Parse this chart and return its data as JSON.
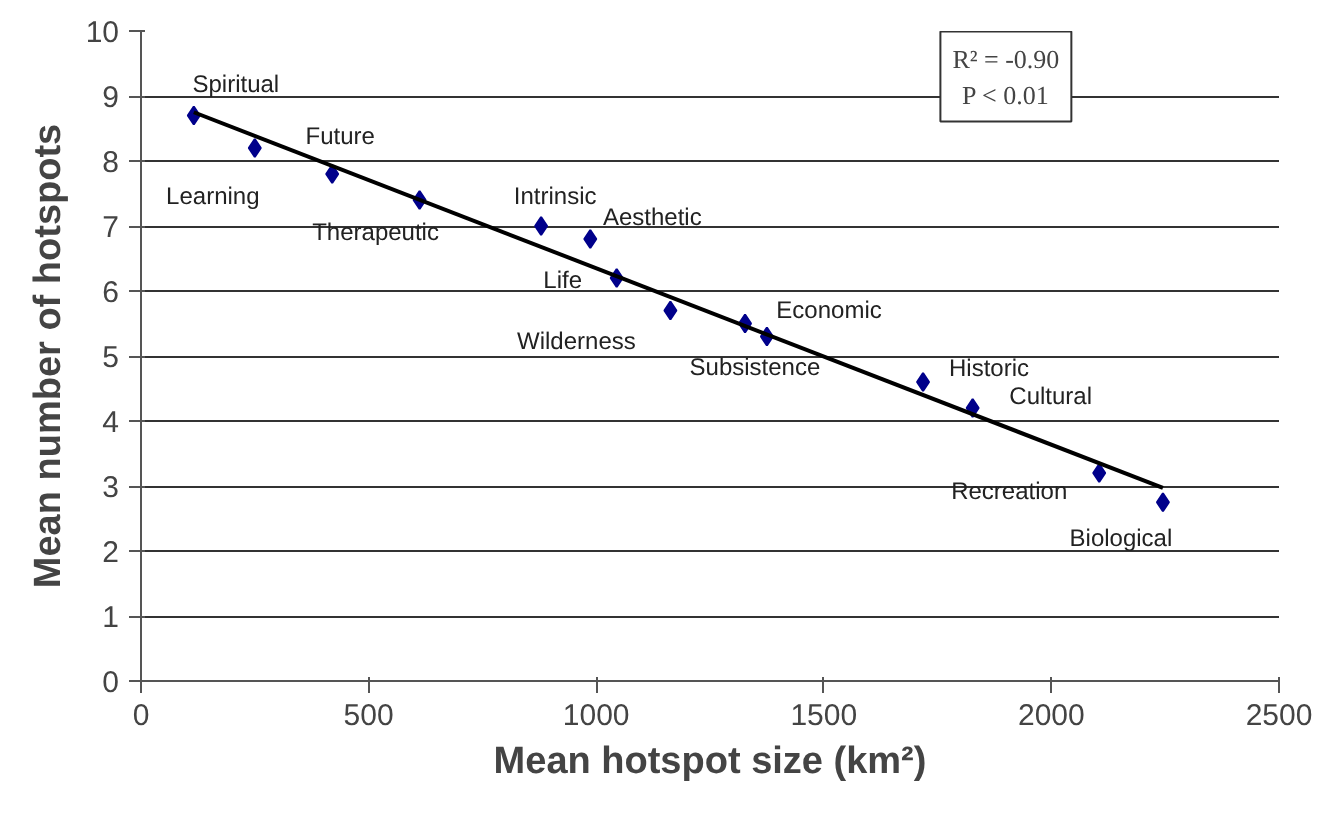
{
  "chart_data": {
    "type": "scatter",
    "xlabel": "Mean hotspot size (km²)",
    "ylabel": "Mean number of hotspots",
    "xlim": [
      0,
      2500
    ],
    "xticks": [
      0,
      500,
      1000,
      1500,
      2000,
      2500
    ],
    "ylim": [
      0,
      10
    ],
    "yticks": [
      0,
      1,
      2,
      3,
      4,
      5,
      6,
      7,
      8,
      9,
      10
    ],
    "grid": "y",
    "series": [
      {
        "marker": "diamond",
        "color": "#00008b",
        "x": [
          116,
          250,
          420,
          612,
          879,
          987,
          1045,
          1163,
          1327,
          1375,
          1718,
          1827,
          2105,
          2245
        ],
        "values": [
          8.7,
          8.2,
          7.8,
          7.4,
          7.0,
          6.8,
          6.2,
          5.7,
          5.5,
          5.3,
          4.6,
          4.2,
          3.2,
          2.75
        ]
      },
      {
        "type": "line",
        "marker": "none",
        "color": "#000000",
        "x": [
          116,
          2245
        ],
        "values": [
          8.75,
          2.97
        ]
      }
    ],
    "annotations": [
      {
        "text": "Spiritual",
        "x": 116,
        "y": 8.7
      },
      {
        "text": "Learning",
        "x": 250,
        "y": 8.2
      },
      {
        "text": "Future",
        "x": 420,
        "y": 7.8
      },
      {
        "text": "Therapeutic",
        "x": 612,
        "y": 7.4
      },
      {
        "text": "Intrinsic",
        "x": 879,
        "y": 7.0
      },
      {
        "text": "Aesthetic",
        "x": 987,
        "y": 6.8
      },
      {
        "text": "Life",
        "x": 1045,
        "y": 6.2
      },
      {
        "text": "Wilderness",
        "x": 1163,
        "y": 5.7
      },
      {
        "text": "Economic",
        "x": 1327,
        "y": 5.5
      },
      {
        "text": "Subsistence",
        "x": 1375,
        "y": 5.3
      },
      {
        "text": "Historic",
        "x": 1718,
        "y": 4.6
      },
      {
        "text": "Cultural",
        "x": 1827,
        "y": 4.2
      },
      {
        "text": "Recreation",
        "x": 2105,
        "y": 3.2
      },
      {
        "text": "Biological",
        "x": 2245,
        "y": 2.75
      },
      "R² = -0.90",
      "P < 0.01"
    ]
  }
}
